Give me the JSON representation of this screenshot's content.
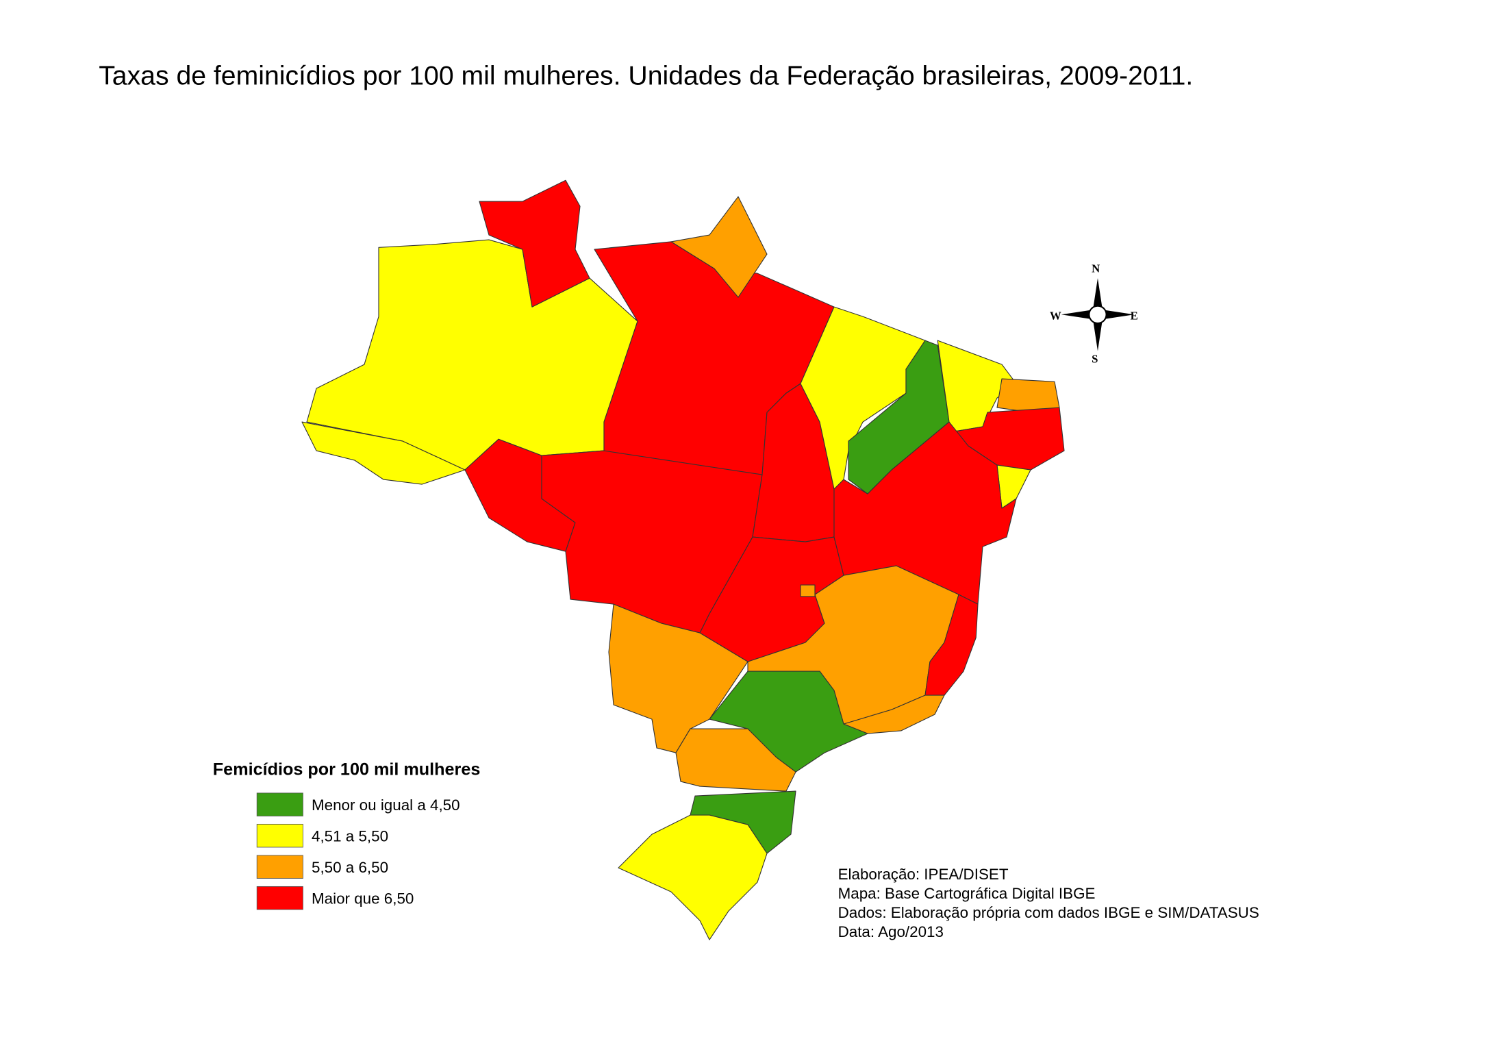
{
  "title": "Taxas de feminicídios por 100 mil mulheres. Unidades da Federação brasileiras, 2009-2011.",
  "legend": {
    "title": "Femicídios por 100 mil mulheres",
    "items": [
      {
        "label": "Menor ou igual a 4,50",
        "color": "#3a9e12"
      },
      {
        "label": "4,51 a 5,50",
        "color": "#ffff00"
      },
      {
        "label": "5,50 a 6,50",
        "color": "#ffa000"
      },
      {
        "label": "Maior que 6,50",
        "color": "#ff0000"
      }
    ]
  },
  "credits": [
    "Elaboração: IPEA/DISET",
    "Mapa: Base Cartográfica Digital IBGE",
    "Dados: Elaboração própria com dados IBGE e SIM/DATASUS",
    "Data: Ago/2013"
  ],
  "compass": {
    "north": "N",
    "south": "S",
    "west": "W",
    "east": "E"
  }
}
